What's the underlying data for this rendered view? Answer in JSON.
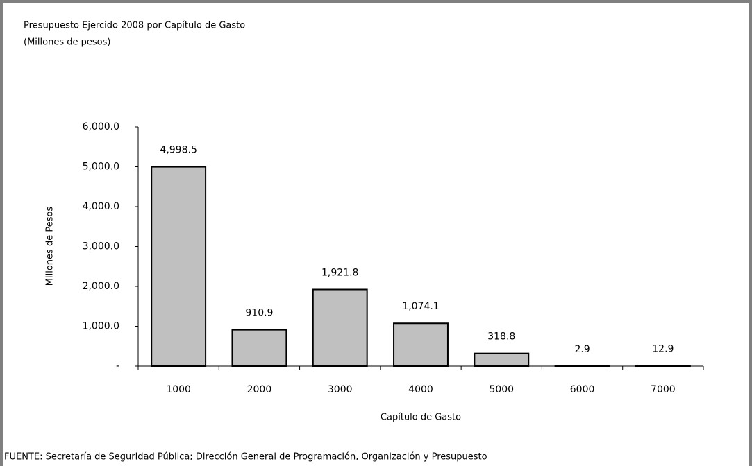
{
  "chart_data": {
    "type": "bar",
    "title": "Presupuesto Ejercido 2008 por Capítulo de Gasto",
    "subtitle": "(Millones de pesos)",
    "x_label": "Capítulo de Gasto",
    "y_label": "Millones de Pesos",
    "source": "FUENTE: Secretaría de Seguridad Pública; Dirección General de Programación, Organización y Presupuesto",
    "categories": [
      "1000",
      "2000",
      "3000",
      "4000",
      "5000",
      "6000",
      "7000"
    ],
    "values": [
      4998.5,
      910.9,
      1921.8,
      1074.1,
      318.8,
      2.9,
      12.9
    ],
    "value_labels": [
      "4,998.5",
      "910.9",
      "1,921.8",
      "1,074.1",
      "318.8",
      "2.9",
      "12.9"
    ],
    "color": "#c0c0c0",
    "ylim": [
      0,
      6000
    ],
    "yticks": [
      {
        "value": 0,
        "label": "-"
      },
      {
        "value": 1000,
        "label": "1,000.0"
      },
      {
        "value": 2000,
        "label": "2,000.0"
      },
      {
        "value": 3000,
        "label": "3,000.0"
      },
      {
        "value": 4000,
        "label": "4,000.0"
      },
      {
        "value": 5000,
        "label": "5,000.0"
      },
      {
        "value": 6000,
        "label": "6,000.0"
      }
    ],
    "grid": false
  }
}
